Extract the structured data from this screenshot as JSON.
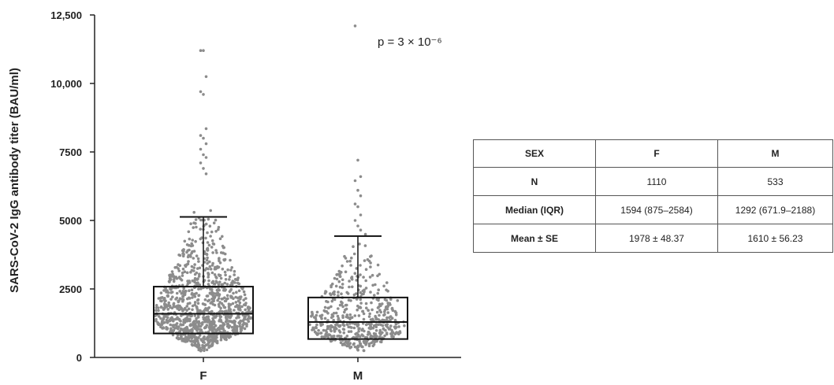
{
  "chart_data": {
    "type": "scatter",
    "subtype": "dot-plot-with-box",
    "ylabel": "SARS-CoV-2 IgG antibody titer (BAU/ml)",
    "xlabel": "",
    "ylim": [
      0,
      12500
    ],
    "y_ticks": [
      "0",
      "2500",
      "5000",
      "7500",
      "10,000",
      "12,500"
    ],
    "y_tick_values": [
      0,
      2500,
      5000,
      7500,
      10000,
      12500
    ],
    "categories": [
      "F",
      "M"
    ],
    "annotation": "p = 3 × 10⁻⁶",
    "groups": [
      {
        "name": "F",
        "n": 1110,
        "q1": 875,
        "median": 1594,
        "q3": 2584,
        "whisker_high": 5130,
        "min": 0,
        "outliers": [
          11200,
          11200,
          10250,
          9700,
          9600,
          8350,
          8100,
          8000,
          7800,
          7600,
          7400,
          7300,
          7100,
          6900,
          6700
        ]
      },
      {
        "name": "M",
        "n": 533,
        "q1": 671.9,
        "median": 1292,
        "q3": 2188,
        "whisker_high": 4430,
        "min": 0,
        "outliers": [
          12100,
          7200,
          6600,
          6450,
          6100,
          5900,
          5600,
          5500,
          5200,
          5000,
          4800,
          4650
        ]
      }
    ],
    "grid": false,
    "point_color": "#8c8c8c"
  },
  "table": {
    "header": [
      "SEX",
      "F",
      "M"
    ],
    "rows": [
      [
        "N",
        "1110",
        "533"
      ],
      [
        "Median (IQR)",
        "1594 (875–2584)",
        "1292 (671.9–2188)"
      ],
      [
        "Mean ± SE",
        "1978 ± 48.37",
        "1610 ± 56.23"
      ]
    ]
  }
}
